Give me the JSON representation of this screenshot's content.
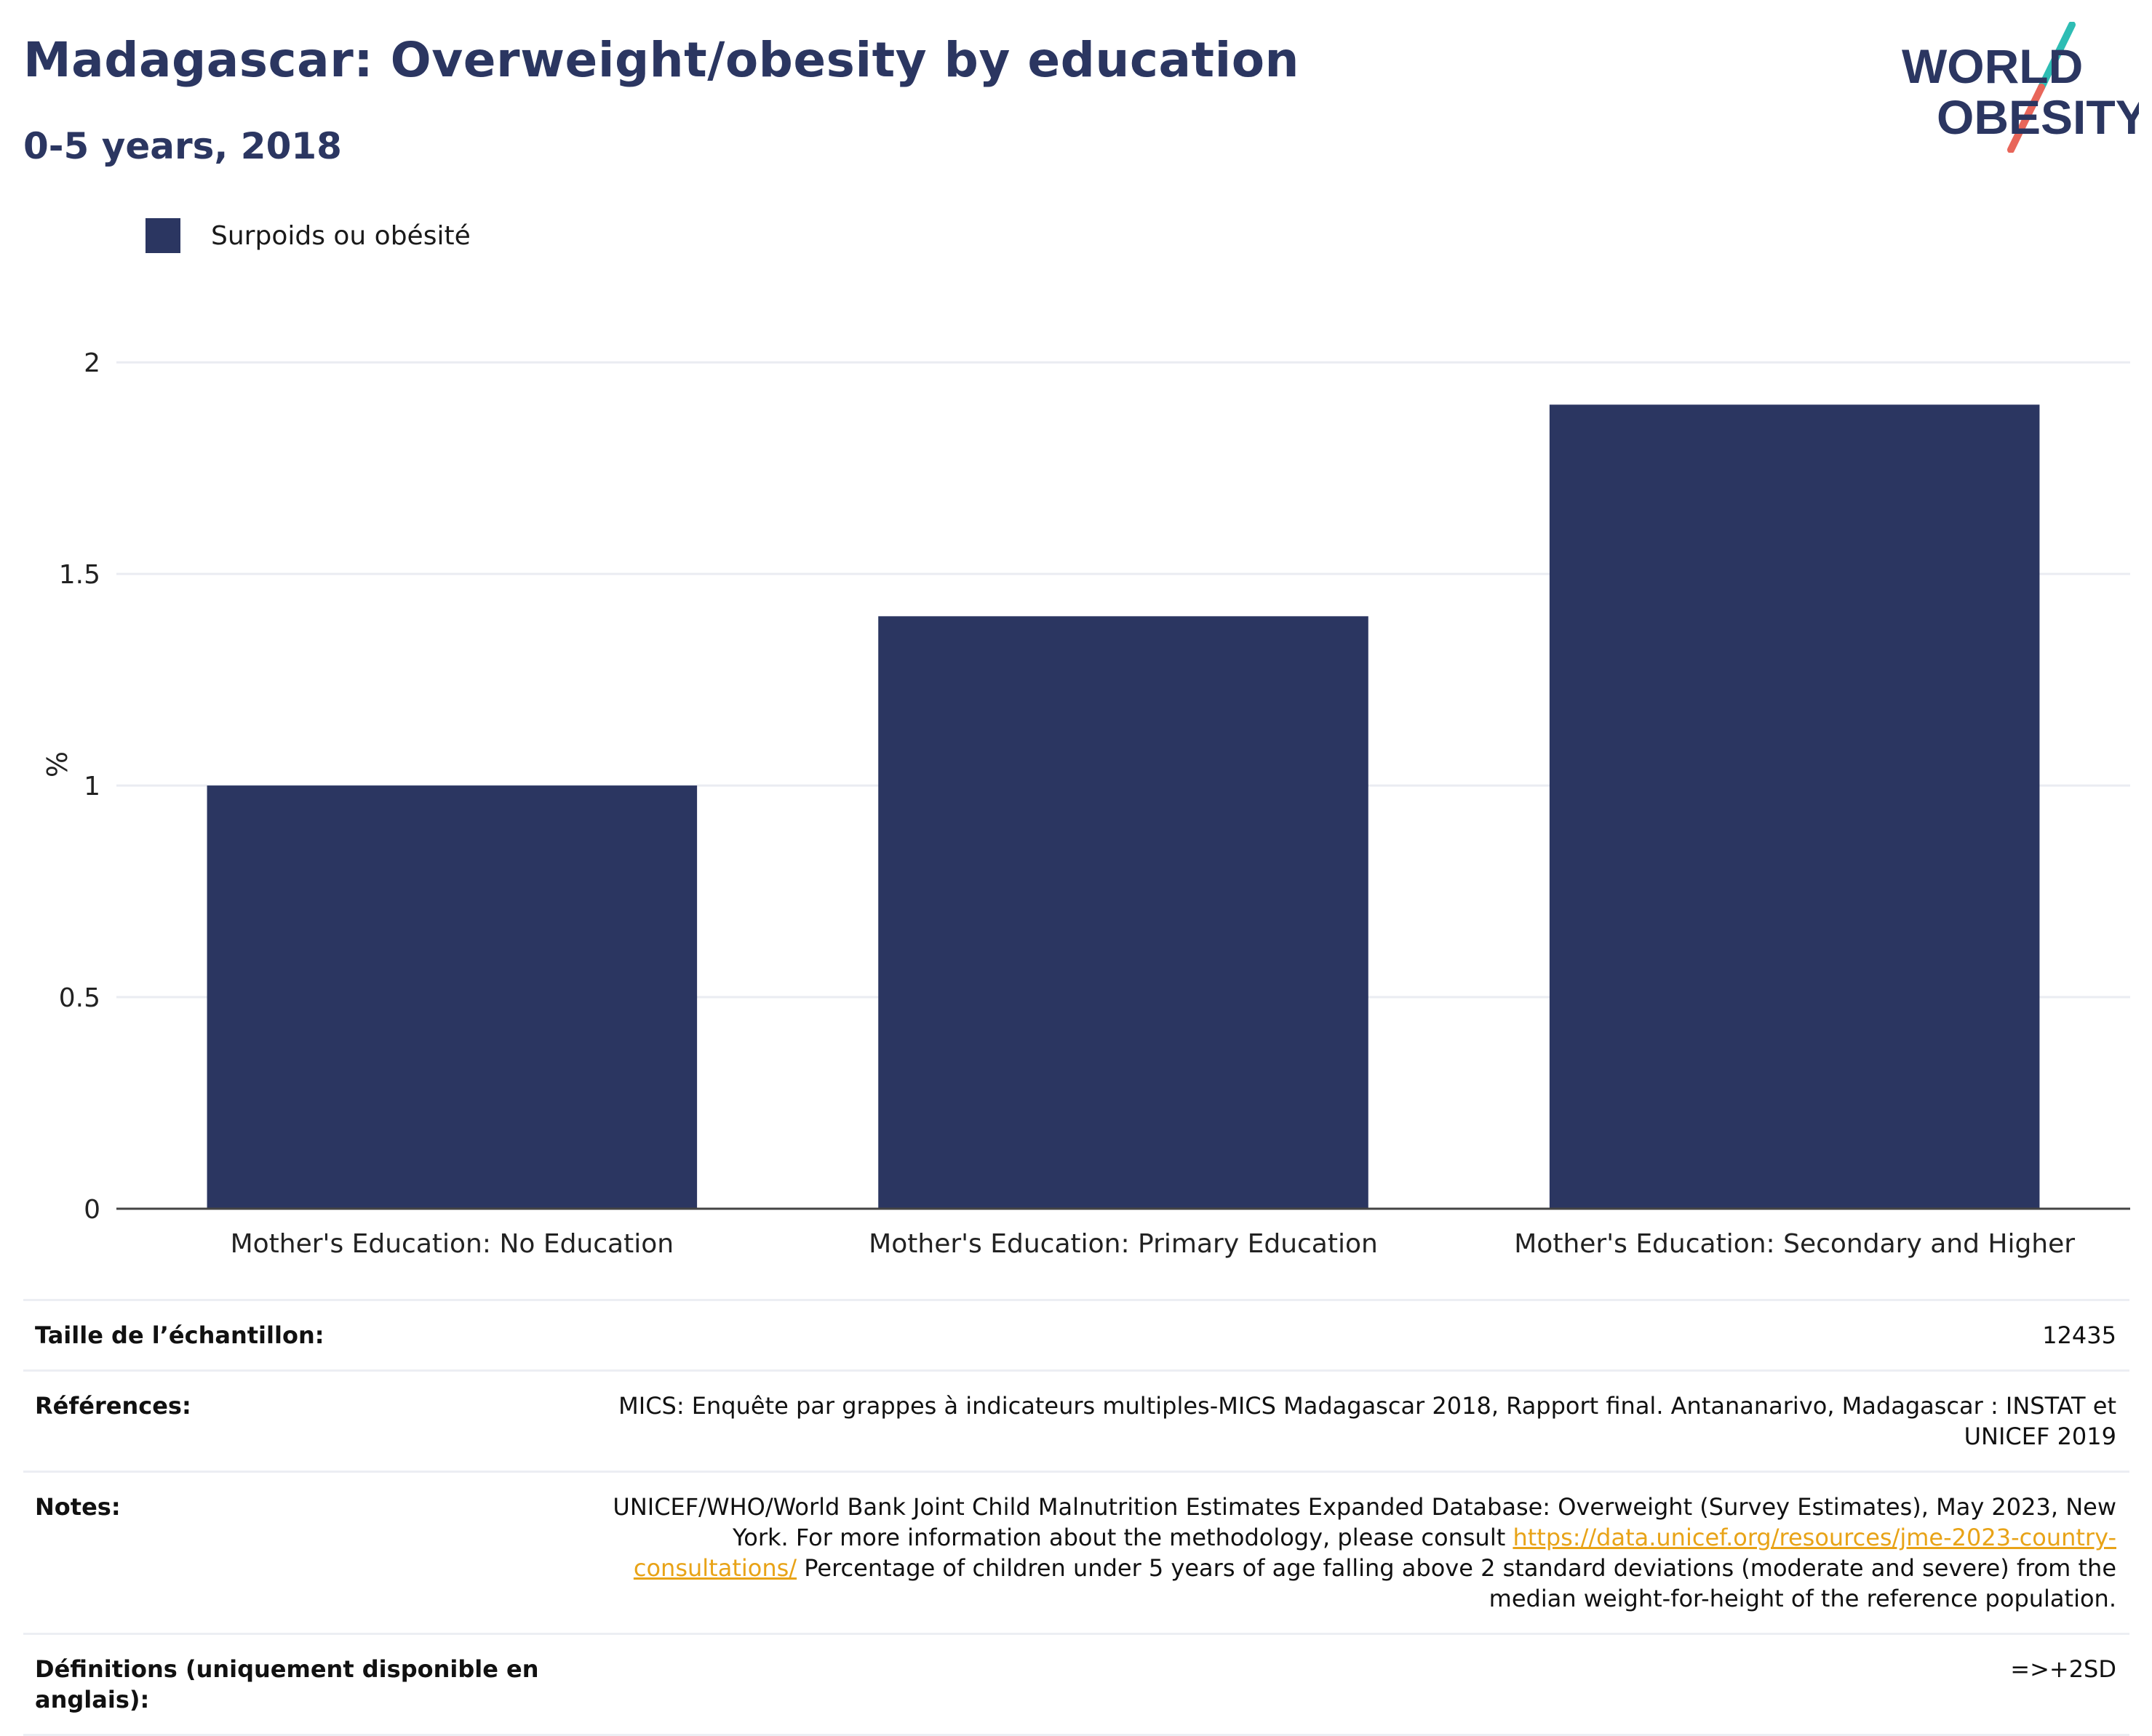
{
  "header": {
    "title": "Madagascar: Overweight/obesity by education",
    "subtitle": "0-5 years, 2018"
  },
  "logo": {
    "line1": "WORLD",
    "line2": "OBESITY",
    "colors": {
      "text": "#2b3661",
      "slash_top": "#2ebdb4",
      "slash_bottom": "#e8665a"
    }
  },
  "chart_data": {
    "type": "bar",
    "categories": [
      "Mother's Education: No Education",
      "Mother's Education: Primary Education",
      "Mother's Education: Secondary and Higher"
    ],
    "series": [
      {
        "name": "Surpoids ou obésité",
        "values": [
          1.0,
          1.4,
          1.9
        ],
        "color": "#2b3661"
      }
    ],
    "title": "Madagascar: Overweight/obesity by education",
    "subtitle": "0-5 years, 2018",
    "ylabel": "%",
    "xlabel": "",
    "ylim": [
      0,
      2.1
    ],
    "yticks": [
      0,
      0.5,
      1,
      1.5,
      2
    ],
    "ytick_labels": [
      "0",
      "0.5",
      "1",
      "1.5",
      "2"
    ],
    "grid": true,
    "legend_position": "top-left"
  },
  "info_table": {
    "rows": [
      {
        "label": "Taille de l’échantillon:",
        "value": "12435"
      },
      {
        "label": "Références:",
        "value": "MICS: Enquête par grappes à indicateurs multiples-MICS Madagascar 2018, Rapport final. Antananarivo, Madagascar : INSTAT et UNICEF 2019"
      },
      {
        "label": "Notes:",
        "value_pre": "UNICEF/WHO/World Bank Joint Child Malnutrition Estimates Expanded Database: Overweight (Survey Estimates), May 2023, New York. For more information about the methodology, please consult ",
        "link": "https://data.unicef.org/resources/jme-2023-country-consultations/",
        "value_post": " Percentage of children under 5 years of age falling above 2 standard deviations (moderate and severe) from the median weight-for-height of the reference population."
      },
      {
        "label": "Définitions (uniquement disponible en anglais):",
        "value": "=>+2SD"
      }
    ]
  }
}
